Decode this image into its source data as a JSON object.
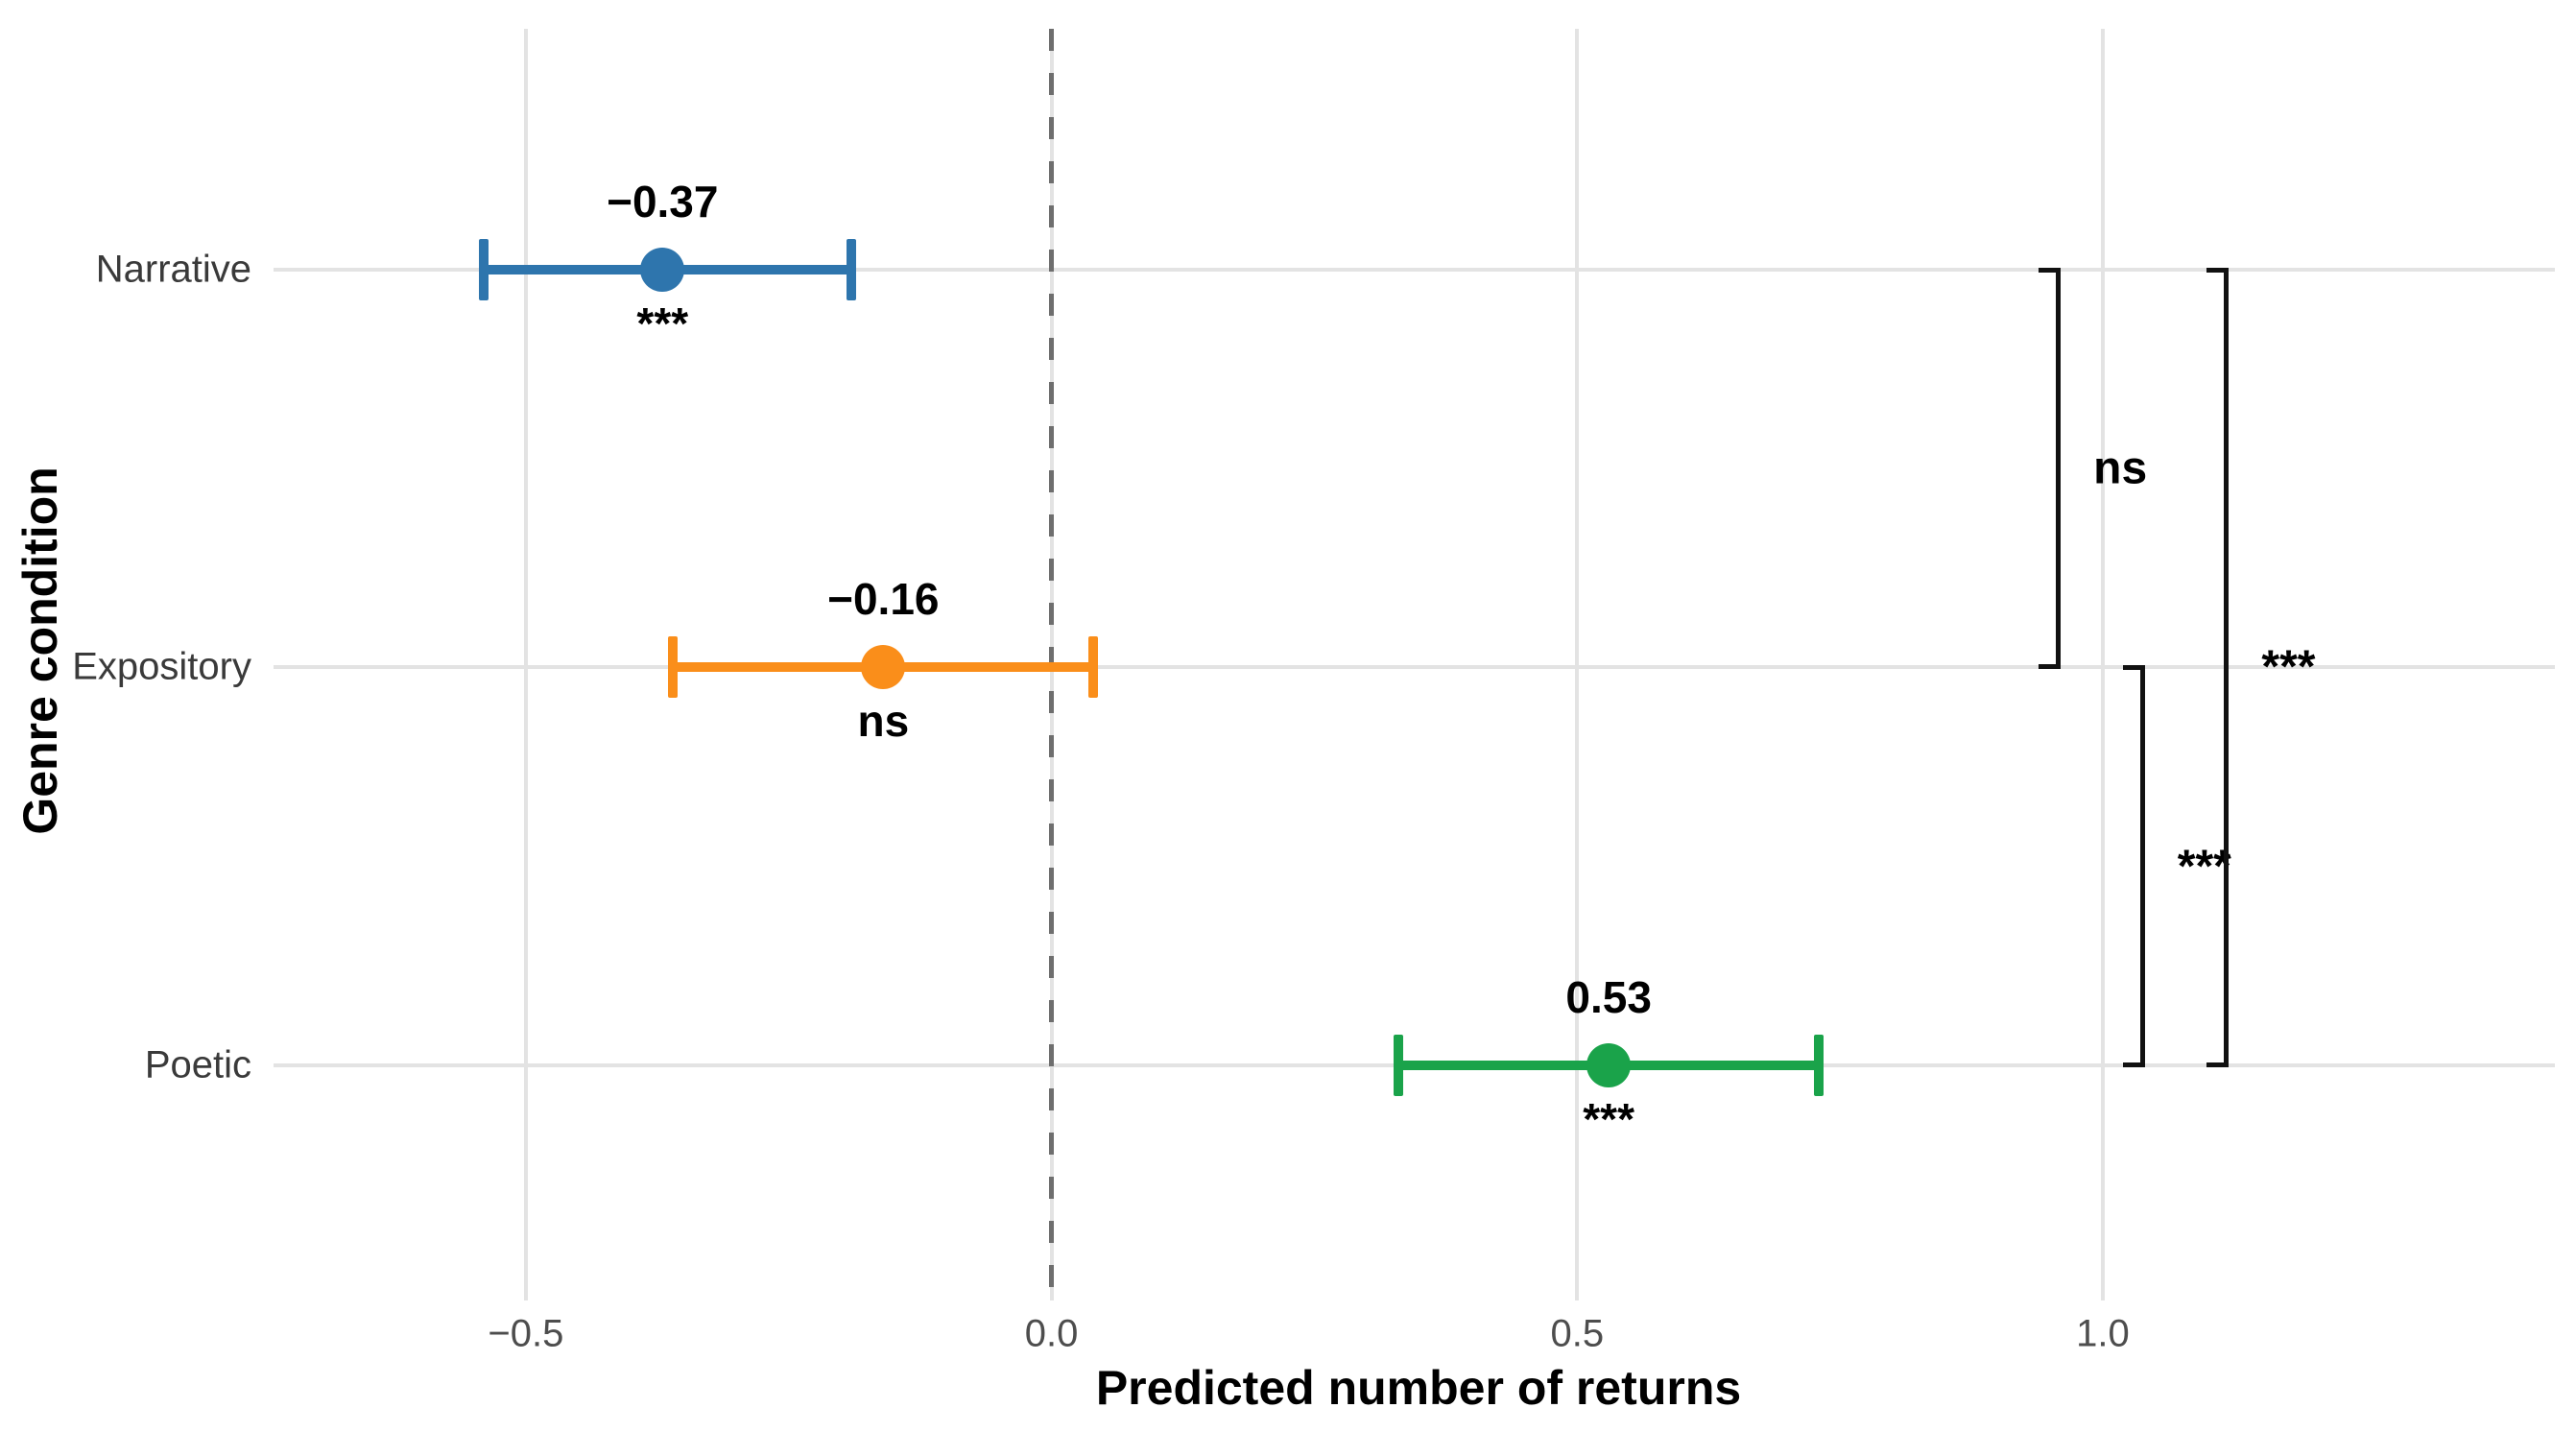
{
  "chart_data": {
    "type": "scatter",
    "subtype": "point-estimates-with-error-bars",
    "title": "",
    "xlabel": "Predicted number of returns",
    "ylabel": "Genre condition",
    "categories": [
      "Narrative",
      "Expository",
      "Poetic"
    ],
    "xlim": [
      -0.74,
      1.43
    ],
    "grid": true,
    "legend": false,
    "x_ticks": [
      {
        "value": -0.5,
        "label": "−0.5"
      },
      {
        "value": 0.0,
        "label": "0.0"
      },
      {
        "value": 0.5,
        "label": "0.5"
      },
      {
        "value": 1.0,
        "label": "1.0"
      }
    ],
    "reference_line": {
      "value": 0.0,
      "style": "dashed",
      "color": "#6e6e6e"
    },
    "series": [
      {
        "category": "Narrative",
        "estimate": -0.37,
        "estimate_label": "−0.37",
        "ci_low": -0.54,
        "ci_high": -0.19,
        "significance": "***",
        "color": "#2e75ad"
      },
      {
        "category": "Expository",
        "estimate": -0.16,
        "estimate_label": "−0.16",
        "ci_low": -0.36,
        "ci_high": 0.04,
        "significance": "ns",
        "color": "#fa8e1a"
      },
      {
        "category": "Poetic",
        "estimate": 0.53,
        "estimate_label": "0.53",
        "ci_low": 0.33,
        "ci_high": 0.73,
        "significance": "***",
        "color": "#1aa34a"
      }
    ],
    "comparisons": [
      {
        "groups": [
          "Narrative",
          "Expository"
        ],
        "label": "ns",
        "x_position": 0.96
      },
      {
        "groups": [
          "Expository",
          "Poetic"
        ],
        "label": "***",
        "x_position": 1.04
      },
      {
        "groups": [
          "Narrative",
          "Poetic"
        ],
        "label": "***",
        "x_position": 1.12
      }
    ]
  },
  "colors": {
    "background": "#ffffff",
    "gridline": "#e3e3e3",
    "bracket": "#111111",
    "tick_text": "#4d4d4d",
    "category_text": "#3a3a3a"
  }
}
